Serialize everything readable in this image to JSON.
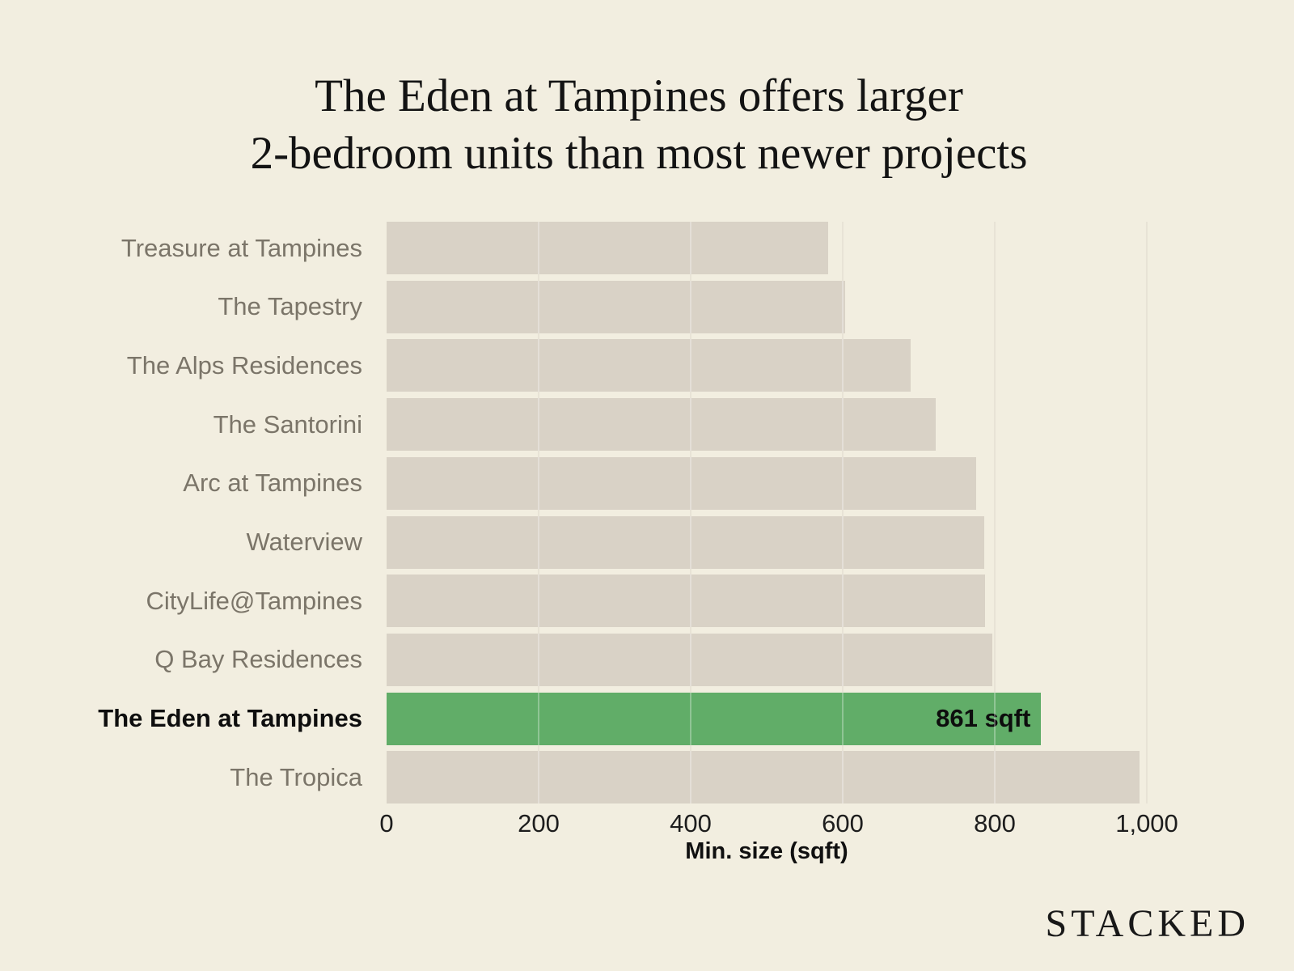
{
  "title": {
    "line1": "The Eden at Tampines offers larger",
    "line2": "2-bedroom units than most newer projects"
  },
  "chart_data": {
    "type": "bar",
    "orientation": "horizontal",
    "categories": [
      "Treasure at Tampines",
      "The Tapestry",
      "The Alps Residences",
      "The Santorini",
      "Arc at Tampines",
      "Waterview",
      "CityLife@Tampines",
      "Q Bay Residences",
      "The Eden at Tampines",
      "The Tropica"
    ],
    "values": [
      581,
      603,
      689,
      722,
      775,
      786,
      787,
      797,
      861,
      990
    ],
    "highlight": {
      "index": 8,
      "category": "The Eden at Tampines",
      "value": 861,
      "label": "861 sqft",
      "color": "#61ad68"
    },
    "xlabel": "Min. size (sqft)",
    "x_tick_labels": [
      "0",
      "200",
      "400",
      "600",
      "800",
      "1,000"
    ],
    "x_tick_values": [
      0,
      200,
      400,
      600,
      800,
      1000
    ],
    "xlim": [
      0,
      1000
    ],
    "grid": "vertical",
    "legend": "none",
    "colors": {
      "background": "#f2eee0",
      "bar": "#d9d2c6",
      "highlight_bar": "#61ad68",
      "category_label": "#7b7569",
      "title_text": "#131313",
      "gridline": "#ded7c5"
    }
  },
  "branding": {
    "logo": "STACKED"
  }
}
